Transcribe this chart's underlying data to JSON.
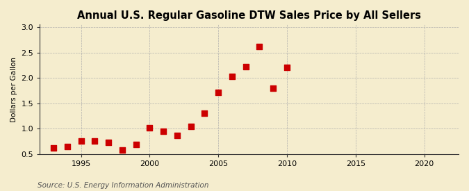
{
  "title": "Annual U.S. Regular Gasoline DTW Sales Price by All Sellers",
  "ylabel": "Dollars per Gallon",
  "source": "Source: U.S. Energy Information Administration",
  "fig_background_color": "#f5edce",
  "plot_background_color": "#fdfaf2",
  "years": [
    1993,
    1994,
    1995,
    1996,
    1997,
    1998,
    1999,
    2000,
    2001,
    2002,
    2003,
    2004,
    2005,
    2006,
    2007,
    2008,
    2009,
    2010
  ],
  "values": [
    0.62,
    0.65,
    0.75,
    0.75,
    0.73,
    0.58,
    0.69,
    1.01,
    0.95,
    0.86,
    1.05,
    1.3,
    1.72,
    2.03,
    2.22,
    2.62,
    1.8,
    2.2
  ],
  "marker_color": "#cc0000",
  "marker_size": 28,
  "xlim": [
    1992,
    2022.5
  ],
  "ylim": [
    0.5,
    3.05
  ],
  "xticks": [
    1995,
    2000,
    2005,
    2010,
    2015,
    2020
  ],
  "yticks": [
    0.5,
    1.0,
    1.5,
    2.0,
    2.5,
    3.0
  ],
  "grid_color": "#aaaaaa",
  "spine_color": "#333333",
  "title_fontsize": 10.5,
  "label_fontsize": 7.5,
  "tick_fontsize": 8,
  "source_fontsize": 7.5
}
